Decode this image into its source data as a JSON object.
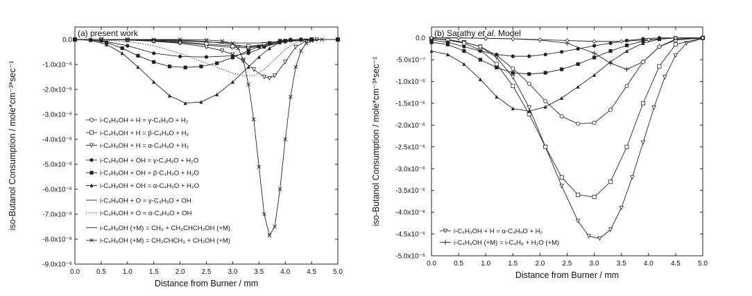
{
  "chart_data": [
    {
      "type": "line",
      "panel_label": "(a) present work",
      "xlabel": "Distance from Burner / mm",
      "ylabel": "iso-Butanol Consumption / mole*cm⁻³*sec⁻¹",
      "xlim": [
        0.0,
        5.0
      ],
      "ylim": [
        -9e-06,
        5e-07
      ],
      "xticks": [
        "0.0",
        "0.5",
        "1.0",
        "1.5",
        "2.0",
        "2.5",
        "3.0",
        "3.5",
        "4.0",
        "4.5",
        "5.0"
      ],
      "yticks": [
        "0.0",
        "-1.0x10⁻⁶",
        "-2.0x10⁻⁶",
        "-3.0x10⁻⁶",
        "-4.0x10⁻⁶",
        "-5.0x10⁻⁶",
        "-6.0x10⁻⁶",
        "-7.0x10⁻⁶",
        "-8.0x10⁻⁶",
        "-9.0x10⁻⁶"
      ],
      "legend_position": "lower-left",
      "series": [
        {
          "name": "i-C₄H₉OH + H = γ-C₄H₉O + H₂",
          "marker": "open-circle",
          "dash": "none",
          "x": [
            0,
            0.5,
            1.0,
            1.5,
            2.0,
            2.5,
            3.0,
            3.3,
            3.6,
            4.0,
            4.5,
            5.0
          ],
          "y": [
            0,
            0,
            -2e-08,
            -6e-08,
            -1.2e-07,
            -2.2e-07,
            -3.2e-07,
            -3.3e-07,
            -2.5e-07,
            -8e-08,
            0,
            0
          ]
        },
        {
          "name": "i-C₄H₉OH + H = β-C₄H₉O + H₂",
          "marker": "open-square",
          "dash": "none",
          "x": [
            0,
            0.5,
            1.0,
            1.5,
            2.0,
            2.5,
            3.0,
            3.3,
            3.6,
            4.0,
            4.5,
            5.0
          ],
          "y": [
            0,
            0,
            -2e-08,
            -5e-08,
            -1e-07,
            -1.8e-07,
            -2.6e-07,
            -2.7e-07,
            -2e-07,
            -6e-08,
            0,
            0
          ]
        },
        {
          "name": "i-C₄H₉OH + H = α-C₄H₉O + H₂",
          "marker": "open-triangle",
          "dash": "none",
          "x": [
            0,
            0.5,
            1.0,
            1.5,
            2.0,
            2.5,
            2.8,
            3.0,
            3.2,
            3.4,
            3.6,
            3.7,
            3.8,
            4.0,
            4.2,
            4.4,
            4.6,
            5.0
          ],
          "y": [
            0,
            0,
            -2e-08,
            -7e-08,
            -1.5e-07,
            -3e-07,
            -4.5e-07,
            -6e-07,
            -8.5e-07,
            -1.2e-06,
            -1.5e-06,
            -1.55e-06,
            -1.45e-06,
            -9e-07,
            -3e-07,
            -5e-08,
            0,
            0
          ]
        },
        {
          "name": "i-C₄H₉OH + OH = γ-C₄H₉O + H₂O",
          "marker": "filled-circle",
          "dash": "none",
          "x": [
            0,
            0.5,
            1.0,
            1.5,
            2.0,
            2.5,
            3.0,
            3.3,
            3.6,
            4.0,
            4.5,
            5.0
          ],
          "y": [
            0,
            -5e-08,
            -2.5e-07,
            -5.5e-07,
            -6.8e-07,
            -7e-07,
            -6.5e-07,
            -5.5e-07,
            -3e-07,
            -5e-08,
            0,
            0
          ]
        },
        {
          "name": "i-C₄H₉OH + OH = β-C₄H₉O + H₂O",
          "marker": "filled-square",
          "dash": "none",
          "x": [
            0,
            0.3,
            0.6,
            0.9,
            1.2,
            1.5,
            1.8,
            2.1,
            2.4,
            2.7,
            3.0,
            3.3,
            3.5,
            3.7,
            3.9,
            4.1,
            4.3,
            4.5,
            5.0
          ],
          "y": [
            0,
            -2e-08,
            -1.2e-07,
            -3.5e-07,
            -6.5e-07,
            -9e-07,
            -1.08e-06,
            -1.12e-06,
            -1.08e-06,
            -9.5e-07,
            -7.2e-07,
            -4.5e-07,
            -2.8e-07,
            -1.4e-07,
            -5e-08,
            -1e-08,
            0,
            0,
            0
          ]
        },
        {
          "name": "i-C₄H₉OH + OH = α-C₄H₉O + H₂O",
          "marker": "filled-triangle",
          "dash": "none",
          "x": [
            0,
            0.3,
            0.6,
            0.9,
            1.2,
            1.5,
            1.8,
            2.1,
            2.4,
            2.7,
            3.0,
            3.3,
            3.5,
            3.7,
            3.9,
            4.1,
            4.3,
            4.5,
            5.0
          ],
          "y": [
            0,
            -3e-08,
            -2e-07,
            -5.5e-07,
            -1.1e-06,
            -1.7e-06,
            -2.25e-06,
            -2.55e-06,
            -2.5e-06,
            -2.2e-06,
            -1.7e-06,
            -1.1e-06,
            -7e-07,
            -3.5e-07,
            -1.2e-07,
            -3e-08,
            0,
            0,
            0
          ]
        },
        {
          "name": "i-C₄H₉OH + O = γ-C₄H₉O + OH",
          "marker": "none",
          "dash": "none",
          "x": [
            0,
            0.5,
            1.0,
            1.5,
            2.0,
            2.5,
            3.0,
            3.5,
            4.0,
            4.5,
            5.0
          ],
          "y": [
            0,
            0,
            -1e-08,
            -3e-08,
            -6e-08,
            -1e-07,
            -1.4e-07,
            -1.4e-07,
            -6e-08,
            0,
            0
          ]
        },
        {
          "name": "i-C₄H₉OH + O = α-C₄H₉O + OH",
          "marker": "none",
          "dash": "dotted",
          "x": [
            0,
            0.5,
            1.0,
            1.5,
            2.0,
            2.5,
            3.0,
            3.2,
            3.4,
            3.6,
            3.8,
            4.0,
            4.2,
            4.5,
            5.0
          ],
          "y": [
            0,
            -2e-08,
            -8e-08,
            -2.5e-07,
            -5.5e-07,
            -9.5e-07,
            -1.35e-06,
            -1.45e-06,
            -1.45e-06,
            -1.2e-06,
            -8e-07,
            -4e-07,
            -1.2e-07,
            0,
            0
          ]
        },
        {
          "name": "i-C₄H₉OH (+M) = CH₃ + CH₃CHCH₂OH (+M)",
          "marker": "none",
          "dash": "none",
          "x": [
            0,
            0.5,
            1.0,
            1.5,
            2.0,
            2.5,
            3.0,
            3.3,
            3.6,
            4.0,
            4.5,
            5.0
          ],
          "y": [
            0,
            0,
            0,
            -1e-08,
            -3e-08,
            -8e-08,
            -2e-07,
            -3e-07,
            -2.5e-07,
            -8e-08,
            0,
            0
          ]
        },
        {
          "name": "i-C₄H₉OH (+M) = CH₃CHCH₃ + CH₂OH (+M)",
          "marker": "cross",
          "dash": "none",
          "x": [
            0,
            0.5,
            1.0,
            1.5,
            2.0,
            2.5,
            2.8,
            3.0,
            3.1,
            3.2,
            3.3,
            3.4,
            3.5,
            3.6,
            3.7,
            3.8,
            3.9,
            4.0,
            4.1,
            4.2,
            4.3,
            4.4,
            4.5,
            4.7,
            5.0
          ],
          "y": [
            0,
            0,
            0,
            0,
            0,
            -2e-08,
            -6e-08,
            -1.5e-07,
            -3.5e-07,
            -8e-07,
            -1.8e-06,
            -3.2e-06,
            -5.1e-06,
            -7e-06,
            -7.85e-06,
            -7.5e-06,
            -6e-06,
            -4e-06,
            -2.3e-06,
            -1.1e-06,
            -4.5e-07,
            -1.5e-07,
            -5e-08,
            0,
            0
          ]
        }
      ]
    },
    {
      "type": "line",
      "panel_label_parts": [
        "(b) Sarathy ",
        "et al.",
        " Model"
      ],
      "xlabel": "Distance from Burner / mm",
      "ylabel": "iso-Butanol Consumption / mole*cm⁻³*sec⁻¹",
      "xlim": [
        0.0,
        5.0
      ],
      "ylim": [
        -5e-06,
        2.5e-07
      ],
      "xticks": [
        "0.0",
        "0.5",
        "1.0",
        "1.5",
        "2.0",
        "2.5",
        "3.0",
        "3.5",
        "4.0",
        "4.5",
        "5.0"
      ],
      "yticks": [
        "0.0",
        "-5.0x10⁻⁷",
        "-1.0x10⁻⁶",
        "-1.5x10⁻⁶",
        "-2.0x10⁻⁶",
        "-2.5x10⁻⁶",
        "-3.0x10⁻⁶",
        "-3.5x10⁻⁶",
        "-4.0x10⁻⁶",
        "-4.5x10⁻⁶",
        "-5.0x10⁻⁶"
      ],
      "legend_position": "lower-left",
      "series": [
        {
          "name": "i-C₄H₉OH + H = α-C₄H₉O + H₂",
          "marker": "open-triangle",
          "dash": "none",
          "in_legend": true,
          "x": [
            0,
            0.3,
            0.6,
            0.9,
            1.2,
            1.5,
            1.8,
            2.1,
            2.4,
            2.7,
            2.9,
            3.1,
            3.3,
            3.5,
            3.7,
            3.9,
            4.1,
            4.3,
            4.5,
            4.7,
            5.0
          ],
          "y": [
            -2e-08,
            -4e-08,
            -1e-07,
            -2e-07,
            -4.5e-07,
            -9e-07,
            -1.6e-06,
            -2.5e-06,
            -3.4e-06,
            -4.2e-06,
            -4.55e-06,
            -4.6e-06,
            -4.4e-06,
            -3.9e-06,
            -3.2e-06,
            -2.4e-06,
            -1.6e-06,
            -9e-07,
            -4e-07,
            -1.2e-07,
            -1e-08
          ]
        },
        {
          "name": "i-C₄H₉OH (+M) = i-C₄H₈ + H₂O (+M)",
          "marker": "plus",
          "dash": "none",
          "in_legend": true,
          "x": [
            0,
            0.5,
            1.0,
            1.5,
            2.0,
            2.5,
            3.0,
            3.3,
            3.6,
            3.9,
            4.2,
            4.5,
            5.0
          ],
          "y": [
            0,
            0,
            -1e-08,
            -2e-08,
            -5e-08,
            -1.2e-07,
            -3.5e-07,
            -5.8e-07,
            -7.2e-07,
            -5.5e-07,
            -2e-07,
            -3e-08,
            0
          ]
        },
        {
          "name": "",
          "marker": "open-circle",
          "dash": "none",
          "in_legend": false,
          "x": [
            0,
            0.3,
            0.6,
            0.9,
            1.2,
            1.5,
            1.8,
            2.1,
            2.4,
            2.7,
            3.0,
            3.3,
            3.6,
            3.9,
            4.2,
            4.5,
            5.0
          ],
          "y": [
            -2e-08,
            -4e-08,
            -1e-07,
            -2e-07,
            -4e-07,
            -7e-07,
            -1.05e-06,
            -1.45e-06,
            -1.8e-06,
            -1.97e-06,
            -1.95e-06,
            -1.65e-06,
            -1.1e-06,
            -5.5e-07,
            -2e-07,
            -5e-08,
            0
          ]
        },
        {
          "name": "",
          "marker": "open-square",
          "dash": "none",
          "in_legend": false,
          "x": [
            0,
            0.3,
            0.6,
            0.9,
            1.2,
            1.5,
            1.8,
            2.1,
            2.4,
            2.7,
            3.0,
            3.3,
            3.6,
            3.9,
            4.2,
            4.5,
            5.0
          ],
          "y": [
            -2e-08,
            -5e-08,
            -1.2e-07,
            -2.8e-07,
            -6e-07,
            -1.1e-06,
            -1.75e-06,
            -2.5e-06,
            -3.2e-06,
            -3.6e-06,
            -3.65e-06,
            -3.3e-06,
            -2.5e-06,
            -1.5e-06,
            -6.5e-07,
            -1.5e-07,
            0
          ]
        },
        {
          "name": "",
          "marker": "filled-circle",
          "dash": "none",
          "in_legend": false,
          "x": [
            0,
            0.3,
            0.6,
            0.9,
            1.2,
            1.5,
            1.8,
            2.1,
            2.4,
            2.7,
            3.0,
            3.3,
            3.6,
            3.9,
            4.2,
            4.5,
            5.0
          ],
          "y": [
            -5e-08,
            -1e-07,
            -2e-07,
            -3e-07,
            -3.8e-07,
            -4.2e-07,
            -4.2e-07,
            -3.8e-07,
            -3.2e-07,
            -2.5e-07,
            -1.8e-07,
            -1.2e-07,
            -6e-08,
            -2e-08,
            0,
            0,
            0
          ]
        },
        {
          "name": "",
          "marker": "filled-square",
          "dash": "none",
          "in_legend": false,
          "x": [
            0,
            0.3,
            0.6,
            0.9,
            1.2,
            1.5,
            1.8,
            2.1,
            2.4,
            2.7,
            3.0,
            3.3,
            3.6,
            3.9,
            4.2,
            4.5,
            5.0
          ],
          "y": [
            -1e-07,
            -1.5e-07,
            -3e-07,
            -5e-07,
            -6.8e-07,
            -8e-07,
            -8.3e-07,
            -8e-07,
            -7.2e-07,
            -6e-07,
            -4.5e-07,
            -3e-07,
            -1.7e-07,
            -7e-08,
            -2e-08,
            0,
            0
          ]
        },
        {
          "name": "",
          "marker": "filled-triangle",
          "dash": "none",
          "in_legend": false,
          "x": [
            0,
            0.3,
            0.6,
            0.9,
            1.2,
            1.5,
            1.8,
            2.1,
            2.4,
            2.7,
            3.0,
            3.3,
            3.6,
            3.9,
            4.2,
            4.5,
            5.0
          ],
          "y": [
            -3e-07,
            -3.8e-07,
            -6e-07,
            -9.5e-07,
            -1.35e-06,
            -1.62e-06,
            -1.68e-06,
            -1.58e-06,
            -1.38e-06,
            -1.12e-06,
            -8.5e-07,
            -5.5e-07,
            -3e-07,
            -1.2e-07,
            -3e-08,
            0,
            0
          ]
        },
        {
          "name": "",
          "marker": "open-diamond",
          "dash": "none",
          "in_legend": false,
          "x": [
            0,
            0.5,
            1.0,
            1.5,
            2.0,
            2.5,
            3.0,
            3.5,
            4.0,
            4.5,
            5.0
          ],
          "y": [
            0,
            0,
            -1e-08,
            -2e-08,
            -4e-08,
            -6e-08,
            -8e-08,
            -8e-08,
            -4e-08,
            0,
            0
          ]
        }
      ]
    }
  ]
}
